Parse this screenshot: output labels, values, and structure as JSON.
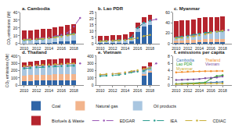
{
  "chart_data": [
    {
      "type": "bar",
      "stacked": true,
      "title": "a. Cambodia",
      "y_label": "CO₂ emissions (Mt)",
      "x": [
        2010,
        2011,
        2012,
        2013,
        2014,
        2015,
        2016,
        2017,
        2018,
        2019
      ],
      "xlim": [
        2009.4,
        2019.6
      ],
      "xticks": [
        2010,
        2012,
        2014,
        2016,
        2018
      ],
      "ylim": [
        0,
        40
      ],
      "yticks": [
        0,
        10,
        20,
        30,
        40
      ],
      "grid": false,
      "series": [
        {
          "name": "Coal",
          "type": "bar",
          "color": "#2f65a7",
          "values": [
            0.3,
            0.3,
            0.4,
            0.4,
            1.0,
            1.8,
            2.5,
            3.2,
            4.0,
            null
          ]
        },
        {
          "name": "Natural gas",
          "type": "bar",
          "color": "#f2b48c",
          "values": [
            0,
            0,
            0,
            0,
            0,
            0,
            0,
            0,
            0,
            null
          ]
        },
        {
          "name": "Oil products",
          "type": "bar",
          "color": "#a9c6e0",
          "values": [
            4.2,
            4.5,
            4.9,
            5.3,
            5.8,
            6.5,
            7.3,
            8.1,
            9.0,
            null
          ]
        },
        {
          "name": "Biofuels & Waste",
          "type": "bar",
          "color": "#b5252e",
          "values": [
            12.5,
            12.6,
            12.7,
            12.8,
            12.6,
            12.5,
            12.4,
            12.3,
            12.2,
            null
          ]
        },
        {
          "name": "EDGAR",
          "type": "line",
          "line_style": "dash",
          "marker": "circle",
          "color": "#9b59b6",
          "values": [
            5.5,
            6.0,
            6.5,
            7.0,
            8.0,
            9.5,
            11.5,
            14.0,
            22.0,
            33.0
          ]
        },
        {
          "name": "IEA",
          "type": "line",
          "line_style": "dash",
          "marker": "circle",
          "color": "#2a9d8f",
          "values": [
            4.5,
            4.8,
            5.3,
            5.7,
            6.8,
            8.3,
            9.8,
            11.3,
            13.0,
            null
          ]
        },
        {
          "name": "CDIAC",
          "type": "line",
          "line_style": "dash",
          "marker": "circle",
          "color": "#c9b037",
          "values": [
            4.8,
            5.2,
            5.6,
            6.0,
            7.0,
            8.0,
            9.0,
            10.5,
            12.0,
            null
          ]
        }
      ]
    },
    {
      "type": "bar",
      "stacked": true,
      "title": "b. Lao PDR",
      "x": [
        2010,
        2011,
        2012,
        2013,
        2014,
        2015,
        2016,
        2017,
        2018,
        2019
      ],
      "xlim": [
        2009.4,
        2019.6
      ],
      "xticks": [
        2010,
        2012,
        2014,
        2016,
        2018
      ],
      "ylim": [
        0,
        25
      ],
      "yticks": [
        0,
        5,
        10,
        15,
        20,
        25
      ],
      "grid": false,
      "series": [
        {
          "name": "Coal",
          "type": "bar",
          "color": "#2f65a7",
          "values": [
            0.4,
            0.5,
            0.5,
            0.6,
            0.6,
            2.0,
            9.5,
            13.5,
            15.0,
            null
          ]
        },
        {
          "name": "Natural gas",
          "type": "bar",
          "color": "#f2b48c",
          "values": [
            0,
            0,
            0,
            0,
            0,
            0,
            0,
            0,
            0,
            null
          ]
        },
        {
          "name": "Oil products",
          "type": "bar",
          "color": "#a9c6e0",
          "values": [
            1.6,
            1.8,
            2.0,
            2.2,
            2.5,
            2.8,
            3.0,
            3.2,
            3.4,
            null
          ]
        },
        {
          "name": "Biofuels & Waste",
          "type": "bar",
          "color": "#b5252e",
          "values": [
            4.2,
            4.2,
            4.3,
            4.3,
            4.4,
            4.4,
            4.5,
            4.5,
            4.6,
            null
          ]
        },
        {
          "name": "EDGAR",
          "type": "line",
          "line_style": "dash",
          "marker": "circle",
          "color": "#9b59b6",
          "values": [
            2.0,
            2.2,
            2.5,
            2.8,
            3.1,
            4.8,
            12.5,
            16.8,
            18.5,
            19.5
          ]
        },
        {
          "name": "IEA",
          "type": "line",
          "line_style": "dash",
          "marker": "circle",
          "color": "#2a9d8f",
          "values": [
            2.0,
            2.3,
            2.5,
            2.8,
            3.1,
            4.8,
            12.5,
            16.7,
            18.4,
            null
          ]
        },
        {
          "name": "CDIAC",
          "type": "line",
          "line_style": "dash",
          "marker": "circle",
          "color": "#c9b037",
          "values": [
            1.8,
            2.0,
            2.3,
            2.5,
            2.8,
            3.5,
            4.5,
            6.0,
            7.0,
            null
          ]
        }
      ]
    },
    {
      "type": "bar",
      "stacked": true,
      "title": "c. Myanmar",
      "x": [
        2010,
        2011,
        2012,
        2013,
        2014,
        2015,
        2016,
        2017,
        2018,
        2019
      ],
      "xlim": [
        2009.4,
        2019.6
      ],
      "xticks": [
        2010,
        2012,
        2014,
        2016,
        2018
      ],
      "ylim": [
        0,
        60
      ],
      "yticks": [
        0,
        20,
        40,
        60
      ],
      "grid": false,
      "series": [
        {
          "name": "Coal",
          "type": "bar",
          "color": "#2f65a7",
          "values": [
            1.0,
            1.5,
            1.8,
            2.0,
            2.2,
            2.5,
            2.8,
            3.0,
            3.0,
            null
          ]
        },
        {
          "name": "Natural gas",
          "type": "bar",
          "color": "#f2b48c",
          "values": [
            5.0,
            5.0,
            5.2,
            5.4,
            5.6,
            5.8,
            6.0,
            6.2,
            6.4,
            null
          ]
        },
        {
          "name": "Oil products",
          "type": "bar",
          "color": "#a9c6e0",
          "values": [
            6.0,
            7.0,
            8.0,
            9.5,
            11.0,
            12.5,
            13.5,
            14.0,
            14.5,
            null
          ]
        },
        {
          "name": "Biofuels & Waste",
          "type": "bar",
          "color": "#b5252e",
          "values": [
            31.0,
            31.0,
            30.5,
            30.0,
            30.0,
            29.5,
            29.0,
            28.5,
            28.0,
            null
          ]
        },
        {
          "name": "EDGAR",
          "type": "line",
          "line_style": "dash",
          "marker": "circle",
          "color": "#9b59b6",
          "values": [
            12,
            13,
            14.5,
            16,
            18,
            20,
            22,
            24,
            25,
            26
          ]
        },
        {
          "name": "IEA",
          "type": "line",
          "line_style": "dash",
          "marker": "circle",
          "color": "#2a9d8f",
          "values": [
            12,
            13.5,
            15,
            17,
            19,
            21,
            22.5,
            23,
            24,
            null
          ]
        },
        {
          "name": "CDIAC",
          "type": "line",
          "line_style": "dash",
          "marker": "circle",
          "color": "#c9b037",
          "values": [
            10,
            11,
            12,
            14,
            16,
            18,
            21,
            23,
            25,
            null
          ]
        }
      ]
    },
    {
      "type": "bar",
      "stacked": true,
      "title": "d. Thailand",
      "y_label": "CO₂ emissions (Mt)",
      "x": [
        2010,
        2011,
        2012,
        2013,
        2014,
        2015,
        2016,
        2017,
        2018,
        2019
      ],
      "xlim": [
        2009.4,
        2019.6
      ],
      "xticks": [
        2010,
        2012,
        2014,
        2016,
        2018
      ],
      "ylim": [
        0,
        400
      ],
      "yticks": [
        0,
        100,
        200,
        300,
        400
      ],
      "grid": false,
      "series": [
        {
          "name": "Coal",
          "type": "bar",
          "color": "#2f65a7",
          "values": [
            55,
            58,
            60,
            60,
            62,
            62,
            64,
            66,
            66,
            null
          ]
        },
        {
          "name": "Natural gas",
          "type": "bar",
          "color": "#f2b48c",
          "values": [
            75,
            78,
            80,
            82,
            82,
            84,
            82,
            80,
            80,
            null
          ]
        },
        {
          "name": "Oil products",
          "type": "bar",
          "color": "#a9c6e0",
          "values": [
            115,
            118,
            125,
            128,
            130,
            135,
            138,
            140,
            142,
            null
          ]
        },
        {
          "name": "Biofuels & Waste",
          "type": "bar",
          "color": "#b5252e",
          "values": [
            70,
            72,
            74,
            76,
            78,
            78,
            80,
            80,
            82,
            null
          ]
        },
        {
          "name": "EDGAR",
          "type": "line",
          "line_style": "dash",
          "marker": "circle",
          "color": "#9b59b6",
          "values": [
            250,
            255,
            265,
            270,
            275,
            280,
            285,
            290,
            295,
            300
          ]
        },
        {
          "name": "IEA",
          "type": "line",
          "line_style": "dash",
          "marker": "circle",
          "color": "#2a9d8f",
          "values": [
            230,
            235,
            245,
            250,
            255,
            260,
            262,
            265,
            268,
            null
          ]
        },
        {
          "name": "CDIAC",
          "type": "line",
          "line_style": "dash",
          "marker": "circle",
          "color": "#c9b037",
          "values": [
            260,
            265,
            275,
            280,
            282,
            288,
            290,
            295,
            300,
            null
          ]
        }
      ]
    },
    {
      "type": "bar",
      "stacked": true,
      "title": "e. Vietnam",
      "x": [
        2010,
        2011,
        2012,
        2013,
        2014,
        2015,
        2016,
        2017,
        2018,
        2019
      ],
      "xlim": [
        2009.4,
        2019.6
      ],
      "xticks": [
        2010,
        2012,
        2014,
        2016,
        2018
      ],
      "ylim": [
        0,
        400
      ],
      "yticks": [
        0,
        100,
        200,
        300,
        400
      ],
      "grid": false,
      "series": [
        {
          "name": "Coal",
          "type": "bar",
          "color": "#2f65a7",
          "values": [
            null,
            null,
            null,
            null,
            null,
            null,
            null,
            130,
            170,
            null
          ]
        },
        {
          "name": "Natural gas",
          "type": "bar",
          "color": "#f2b48c",
          "values": [
            null,
            null,
            null,
            null,
            null,
            null,
            null,
            20,
            22,
            null
          ]
        },
        {
          "name": "Oil products",
          "type": "bar",
          "color": "#a9c6e0",
          "values": [
            null,
            null,
            null,
            null,
            null,
            null,
            null,
            65,
            70,
            null
          ]
        },
        {
          "name": "Biofuels & Waste",
          "type": "bar",
          "color": "#b5252e",
          "values": [
            null,
            null,
            null,
            null,
            null,
            null,
            null,
            45,
            46,
            null
          ]
        },
        {
          "name": "EDGAR",
          "type": "line",
          "line_style": "dash",
          "marker": "circle",
          "color": "#9b59b6",
          "values": [
            140,
            150,
            155,
            160,
            170,
            185,
            195,
            210,
            250,
            300
          ]
        },
        {
          "name": "IEA",
          "type": "line",
          "line_style": "dash",
          "marker": "circle",
          "color": "#2a9d8f",
          "values": [
            125,
            130,
            135,
            140,
            155,
            175,
            185,
            195,
            230,
            null
          ]
        },
        {
          "name": "CDIAC",
          "type": "line",
          "line_style": "dash",
          "marker": "circle",
          "color": "#c9b037",
          "values": [
            145,
            150,
            155,
            160,
            175,
            190,
            205,
            220,
            240,
            null
          ]
        }
      ]
    },
    {
      "type": "line",
      "title": "f. emissions per capita",
      "x": [
        2010,
        2011,
        2012,
        2013,
        2014,
        2015,
        2016,
        2017,
        2018,
        2019
      ],
      "xlim": [
        2009.4,
        2019.6
      ],
      "xticks": [
        2010,
        2012,
        2014,
        2016,
        2018
      ],
      "ylim": [
        0,
        8
      ],
      "yticks": [
        0,
        2,
        4,
        6,
        8
      ],
      "grid": false,
      "series": [
        {
          "name": "Cambodia",
          "marker": "circle",
          "color": "#3b75af",
          "values": [
            0.35,
            0.4,
            0.42,
            0.45,
            0.5,
            0.6,
            0.7,
            0.8,
            0.9,
            null
          ]
        },
        {
          "name": "Lao PDR",
          "marker": "circle",
          "color": "#2ca02c",
          "values": [
            0.3,
            0.35,
            0.4,
            0.45,
            0.5,
            0.7,
            1.8,
            2.5,
            2.7,
            null
          ]
        },
        {
          "name": "Myanmar",
          "marker": "circle",
          "color": "#c9b037",
          "values": [
            0.25,
            0.27,
            0.3,
            0.33,
            0.37,
            0.4,
            0.43,
            0.45,
            0.47,
            null
          ]
        },
        {
          "name": "Thailand",
          "marker": "circle",
          "color": "#f28e2b",
          "values": [
            3.5,
            3.6,
            3.7,
            3.75,
            3.8,
            3.85,
            3.85,
            3.9,
            3.9,
            null
          ]
        },
        {
          "name": "Vietnam",
          "marker": "circle",
          "color": "#7b4fa0",
          "values": [
            1.4,
            1.45,
            1.5,
            1.55,
            1.7,
            1.9,
            2.0,
            2.1,
            2.4,
            null
          ]
        }
      ]
    }
  ]
}
